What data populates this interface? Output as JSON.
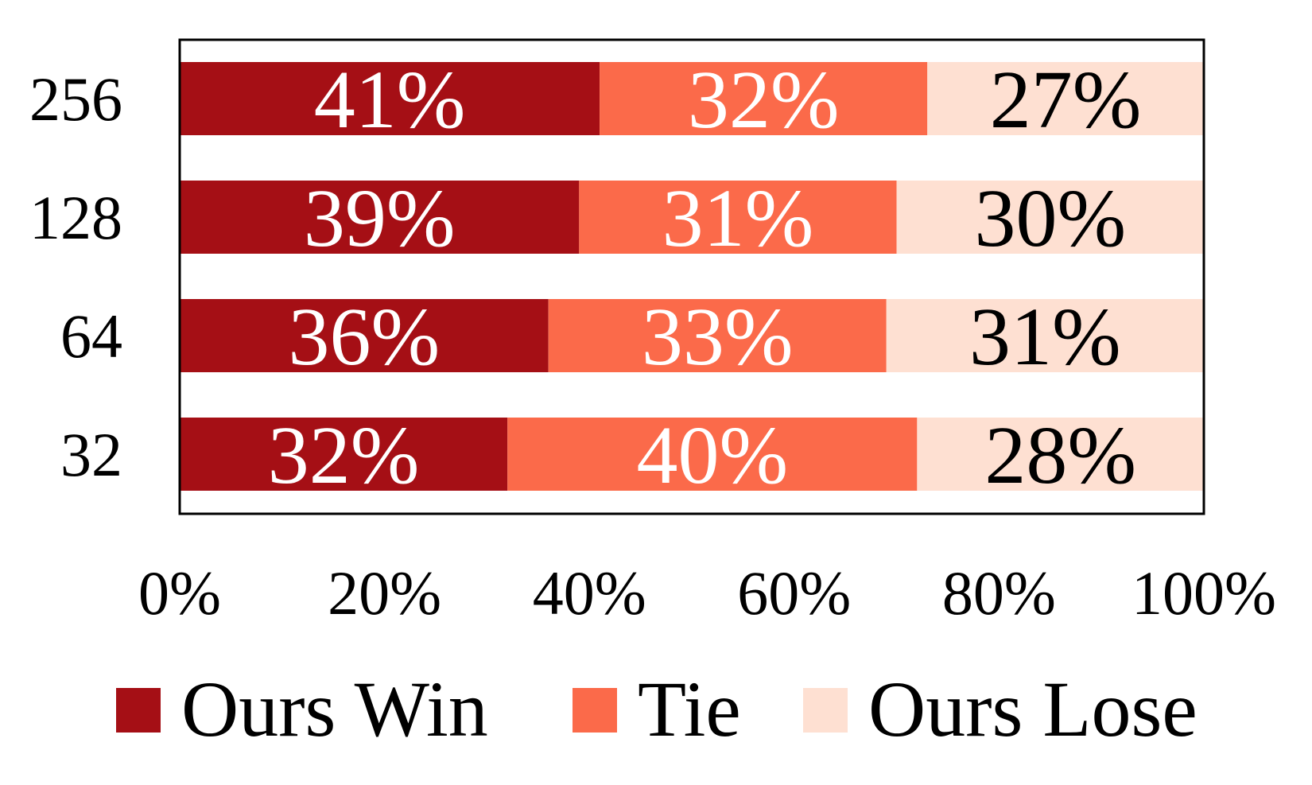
{
  "chart_data": {
    "type": "bar",
    "orientation": "horizontal",
    "stacked": true,
    "normalized_percent": true,
    "categories": [
      "256",
      "128",
      "64",
      "32"
    ],
    "series": [
      {
        "name": "Ours Win",
        "values": [
          41,
          39,
          36,
          32
        ],
        "color": "#a50f15",
        "label_color": "#ffffff"
      },
      {
        "name": "Tie",
        "values": [
          32,
          31,
          33,
          40
        ],
        "color": "#fb6a4a",
        "label_color": "#ffffff"
      },
      {
        "name": "Ours Lose",
        "values": [
          27,
          30,
          31,
          28
        ],
        "color": "#fee0d2",
        "label_color": "#000000"
      }
    ],
    "data_labels": [
      [
        "41%",
        "39%",
        "36%",
        "32%"
      ],
      [
        "32%",
        "31%",
        "33%",
        "40%"
      ],
      [
        "27%",
        "30%",
        "31%",
        "28%"
      ]
    ],
    "xlim": [
      0,
      100
    ],
    "xticks": [
      0,
      20,
      40,
      60,
      80,
      100
    ],
    "xtick_labels": [
      "0%",
      "20%",
      "40%",
      "60%",
      "80%",
      "100%"
    ],
    "title": "",
    "xlabel": "",
    "ylabel": "",
    "grid": false,
    "legend_position": "bottom"
  }
}
